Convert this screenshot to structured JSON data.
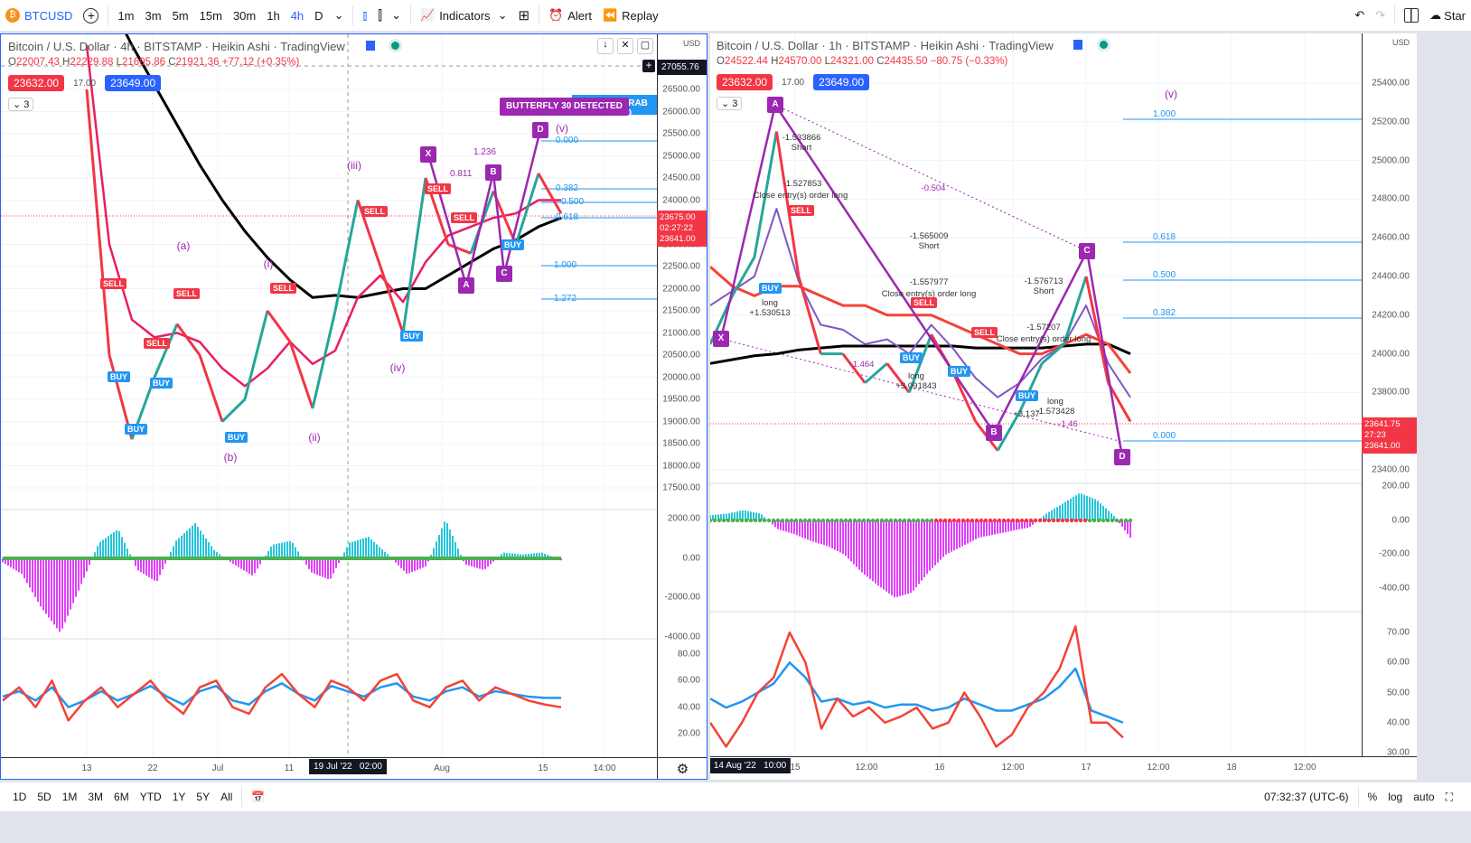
{
  "toolbar": {
    "symbol": "BTCUSD",
    "intervals": [
      "1m",
      "3m",
      "5m",
      "15m",
      "30m",
      "1h",
      "4h",
      "D"
    ],
    "active_interval": "4h",
    "indicators": "Indicators",
    "alert": "Alert",
    "replay": "Replay",
    "start": "Star"
  },
  "left": {
    "title": "Bitcoin / U.S. Dollar · 4h · BITSTAMP · Heikin Ashi · TradingView",
    "ohlc": {
      "o": "22007.43",
      "h": "22229.88",
      "l": "21695.86",
      "c": "21921.36",
      "chg": "+77.12 (+0.35%)"
    },
    "sell_price": "23632.00",
    "spread": "17.00",
    "buy_price": "23649.00",
    "collapse": "3",
    "currency": "USD",
    "price_ticks": [
      "26500.00",
      "26000.00",
      "25500.00",
      "25000.00",
      "24500.00",
      "24000.00",
      "23500.00",
      "23000.00",
      "22500.00",
      "22000.00",
      "21500.00",
      "21000.00",
      "20500.00",
      "20000.00",
      "19500.00",
      "19000.00",
      "18500.00",
      "18000.00",
      "17500.00"
    ],
    "crosshair_price": "27055.76",
    "last_price": "23675.00",
    "countdown": "02:27:22",
    "last_price2": "23641.00",
    "macd_ticks": [
      "2000.00",
      "0.00",
      "-2000.00",
      "-4000.00"
    ],
    "rsi_ticks": [
      "80.00",
      "60.00",
      "40.00",
      "20.00"
    ],
    "time_ticks": [
      "13",
      "22",
      "Jul",
      "11",
      "Aug",
      "15",
      "14:00"
    ],
    "crosshair_time": "19 Jul '22   02:00",
    "pattern_butterfly": "BUTTERFLY 30 DETECTED",
    "pattern_crab": "CRAB 30",
    "points": [
      "X",
      "A",
      "B",
      "C",
      "D"
    ],
    "waves": [
      "(v)",
      "(iii)",
      "(a)",
      "(i)",
      "(iv)",
      "(ii)",
      "(b)"
    ],
    "fibs": [
      "0.000",
      "0.382",
      "0.500",
      "0.618",
      "1.000",
      "1.272"
    ],
    "ratios": [
      "1.236",
      "0.811"
    ],
    "buy": "BUY",
    "sell": "SELL",
    "price": [
      26500,
      20500,
      18600,
      20000,
      21200,
      20500,
      19000,
      19500,
      21500,
      20800,
      19300,
      21500,
      24000,
      22500,
      21000,
      24500,
      23000,
      22800,
      24200,
      23000,
      24600,
      23700
    ],
    "ma_red": [
      27500,
      23000,
      21300,
      20900,
      21000,
      20800,
      20200,
      19800,
      20200,
      20800,
      20300,
      20600,
      21800,
      22300,
      21700,
      22600,
      23200,
      23400,
      23600,
      23700,
      24000,
      24000
    ],
    "ma_black": [
      29500,
      28500,
      27500,
      26600,
      25700,
      24800,
      24000,
      23300,
      22700,
      22200,
      21800,
      21850,
      21800,
      21900,
      22000,
      22000,
      22300,
      22600,
      22900,
      23100,
      23400,
      23600
    ],
    "macd": [
      -200,
      -800,
      -2500,
      -3800,
      -1500,
      800,
      1500,
      -600,
      -1200,
      900,
      1800,
      400,
      -300,
      -900,
      700,
      900,
      -700,
      -1100,
      800,
      1100,
      200,
      -800,
      -400,
      2000,
      -300,
      -600,
      300,
      200,
      300,
      -100
    ],
    "rsi_red": [
      45,
      55,
      40,
      60,
      30,
      45,
      55,
      40,
      50,
      60,
      45,
      35,
      55,
      60,
      40,
      35,
      55,
      65,
      50,
      40,
      60,
      55,
      45,
      60,
      65,
      45,
      40,
      55,
      60,
      45,
      55,
      50,
      45,
      42,
      40
    ],
    "rsi_blue": [
      48,
      52,
      45,
      55,
      40,
      45,
      52,
      45,
      50,
      56,
      48,
      42,
      52,
      56,
      45,
      42,
      52,
      58,
      50,
      45,
      56,
      52,
      48,
      55,
      58,
      48,
      45,
      52,
      55,
      48,
      52,
      50,
      48,
      47,
      47
    ]
  },
  "right": {
    "title": "Bitcoin / U.S. Dollar · 1h · BITSTAMP · Heikin Ashi · TradingView",
    "ohlc": {
      "o": "24522.44",
      "h": "24570.00",
      "l": "24321.00",
      "c": "24435.50",
      "chg": "−80.75 (−0.33%)"
    },
    "sell_price": "23632.00",
    "spread": "17.00",
    "buy_price": "23649.00",
    "collapse": "3",
    "currency": "USD",
    "price_ticks": [
      "25400.00",
      "25200.00",
      "25000.00",
      "24800.00",
      "24600.00",
      "24400.00",
      "24200.00",
      "24000.00",
      "23800.00",
      "23400.00"
    ],
    "last_price": "23641.75",
    "countdown": "27:23",
    "last_price2": "23641.00",
    "macd_ticks": [
      "200.00",
      "0.00",
      "-200.00",
      "-400.00"
    ],
    "rsi_ticks": [
      "70.00",
      "60.00",
      "50.00",
      "40.00",
      "30.00"
    ],
    "time_ticks": [
      "15",
      "12:00",
      "16",
      "12:00",
      "17",
      "12:00",
      "18",
      "12:00"
    ],
    "crosshair_time": "14 Aug '22   10:00",
    "points": [
      "A",
      "X",
      "B",
      "C",
      "D"
    ],
    "wave": "(v)",
    "fibs": [
      "1.000",
      "0.618",
      "0.500",
      "0.382",
      "0.000"
    ],
    "notes": [
      "-1.533866",
      "Short",
      "-1.527853",
      "Close entry(s) order long",
      "-0.504",
      "-1.565009",
      "Short",
      "-1.557977",
      "Close entry(s) order long",
      "-1.576713",
      "Short",
      "-1.57207",
      "Close entry(s) order long",
      "long",
      "+1.530513",
      "long",
      "+3.091843",
      "-1.464",
      "long",
      "-1.573428",
      "+3.137",
      "-1.46"
    ],
    "buy": "BUY",
    "sell": "SELL",
    "price": [
      24050,
      24300,
      24500,
      25150,
      24400,
      24000,
      24000,
      23850,
      23950,
      23800,
      24100,
      23900,
      23650,
      23500,
      23700,
      23950,
      24050,
      24400,
      23850,
      23650
    ],
    "ma_red": [
      24450,
      24350,
      24300,
      24350,
      24350,
      24300,
      24250,
      24250,
      24200,
      24200,
      24200,
      24150,
      24100,
      24050,
      24000,
      24000,
      24050,
      24100,
      24050,
      23900
    ],
    "ma_black": [
      23950,
      23970,
      23990,
      24000,
      24020,
      24030,
      24040,
      24040,
      24040,
      24040,
      24040,
      24040,
      24030,
      24030,
      24030,
      24030,
      24040,
      24050,
      24050,
      24000
    ],
    "macd": [
      30,
      40,
      60,
      40,
      -50,
      -80,
      -120,
      -150,
      -200,
      -300,
      -380,
      -450,
      -420,
      -300,
      -200,
      -150,
      -100,
      -80,
      -60,
      -40,
      40,
      100,
      160,
      120,
      30,
      -100
    ],
    "rsi_red": [
      40,
      32,
      40,
      50,
      55,
      70,
      60,
      38,
      48,
      42,
      45,
      40,
      42,
      45,
      38,
      40,
      50,
      42,
      32,
      36,
      45,
      50,
      58,
      72,
      40,
      40,
      35
    ],
    "rsi_blue": [
      48,
      45,
      47,
      50,
      53,
      60,
      55,
      47,
      48,
      46,
      47,
      45,
      46,
      46,
      44,
      45,
      48,
      46,
      44,
      44,
      46,
      48,
      52,
      58,
      44,
      42,
      40
    ]
  },
  "bottombar": {
    "ranges": [
      "1D",
      "5D",
      "1M",
      "3M",
      "6M",
      "YTD",
      "1Y",
      "5Y",
      "All"
    ],
    "clock": "07:32:37 (UTC-6)",
    "percent": "%",
    "log": "log",
    "auto": "auto"
  },
  "colors": {
    "up": "#26a69a",
    "down": "#f23645",
    "accent": "#2962ff",
    "pattern": "#9c27b0",
    "fib": "#2196f3"
  }
}
